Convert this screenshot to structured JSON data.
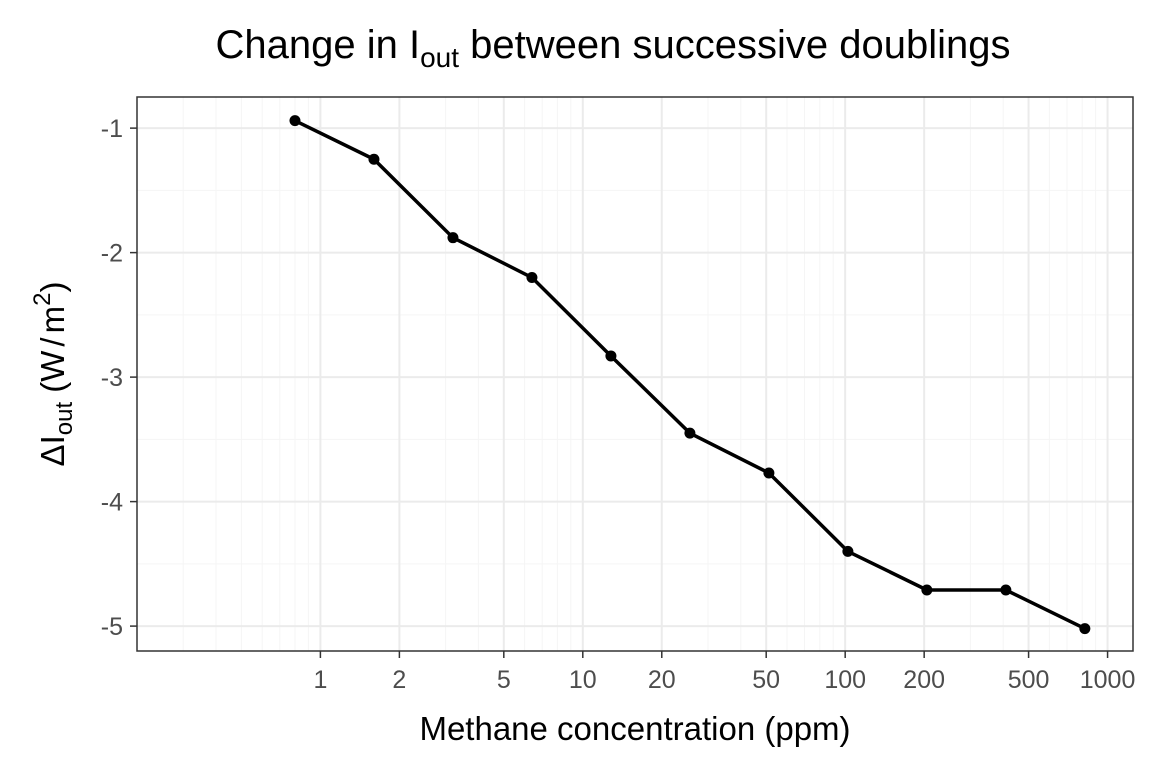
{
  "chart_data": {
    "type": "line",
    "title": {
      "prefix": "Change in I",
      "subscript": "out",
      "suffix": " between successive doublings"
    },
    "xlabel": "Methane concentration (ppm)",
    "ylabel": {
      "delta": "Δ",
      "base": "I",
      "subscript": "out",
      "units_open": "(W",
      "slash": "/",
      "units_base": "m",
      "superscript": "2",
      "units_close": ")"
    },
    "x_scale": "log10",
    "xlim": [
      0.2,
      1250
    ],
    "ylim": [
      -5.2,
      -0.75
    ],
    "x_ticks": [
      1,
      2,
      5,
      10,
      20,
      50,
      100,
      200,
      500,
      1000
    ],
    "x_tick_labels": [
      "1",
      "2",
      "5",
      "10",
      "20",
      "50",
      "100",
      "200",
      "500",
      "1000"
    ],
    "y_ticks": [
      -1,
      -2,
      -3,
      -4,
      -5
    ],
    "y_tick_labels": [
      "-1",
      "-2",
      "-3",
      "-4",
      "-5"
    ],
    "grid": true,
    "x": [
      0.8,
      1.6,
      3.2,
      6.4,
      12.8,
      25.6,
      51.2,
      102.4,
      204.8,
      409.6,
      819.2
    ],
    "y": [
      -0.94,
      -1.25,
      -1.88,
      -2.2,
      -2.83,
      -3.45,
      -3.77,
      -4.4,
      -4.71,
      -4.71,
      -5.02
    ],
    "colors": {
      "line": "#000000",
      "point": "#000000",
      "grid_major": "#ebebeb",
      "grid_minor": "#f5f5f5",
      "panel_border": "#333333",
      "tick_text": "#4d4d4d"
    }
  }
}
